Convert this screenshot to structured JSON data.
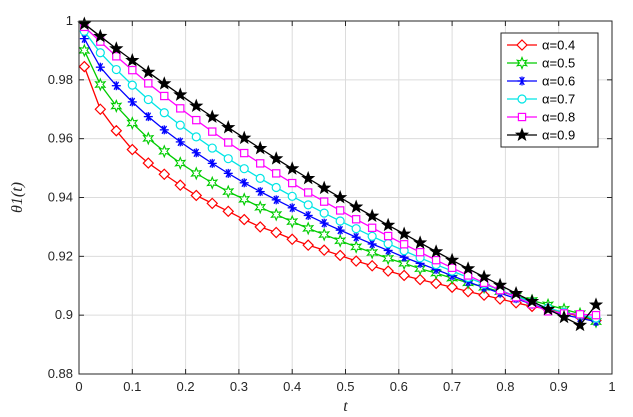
{
  "chart_data": {
    "type": "line",
    "xlabel": "t",
    "ylabel": "θ1(t)",
    "xlim": [
      0,
      1
    ],
    "ylim": [
      0.88,
      1.0
    ],
    "xticks": [
      "0",
      "0.1",
      "0.2",
      "0.3",
      "0.4",
      "0.5",
      "0.6",
      "0.7",
      "0.8",
      "0.9",
      "1"
    ],
    "yticks": [
      "0.88",
      "0.9",
      "0.92",
      "0.94",
      "0.96",
      "0.98",
      "1"
    ],
    "grid": true,
    "legend_position": "top-right",
    "x": [
      0.01,
      0.04,
      0.07,
      0.1,
      0.13,
      0.16,
      0.19,
      0.22,
      0.25,
      0.28,
      0.31,
      0.34,
      0.37,
      0.4,
      0.43,
      0.46,
      0.49,
      0.52,
      0.55,
      0.58,
      0.61,
      0.64,
      0.67,
      0.7,
      0.73,
      0.76,
      0.79,
      0.82,
      0.85,
      0.88,
      0.91,
      0.94,
      0.97
    ],
    "series": [
      {
        "name": "α=0.4",
        "color": "#ff0000",
        "marker": "diamond",
        "values": [
          0.9845,
          0.97,
          0.9627,
          0.9563,
          0.9517,
          0.9479,
          0.9442,
          0.9407,
          0.938,
          0.9353,
          0.9325,
          0.93,
          0.9281,
          0.9258,
          0.9238,
          0.9221,
          0.9203,
          0.9184,
          0.9168,
          0.915,
          0.9135,
          0.9121,
          0.9108,
          0.9095,
          0.908,
          0.9068,
          0.9055,
          0.9042,
          0.903,
          0.902,
          0.901,
          0.8995,
          0.8982
        ]
      },
      {
        "name": "α=0.5",
        "color": "#00cc00",
        "marker": "hexagram",
        "values": [
          0.99,
          0.9784,
          0.9711,
          0.9653,
          0.9601,
          0.9557,
          0.9517,
          0.9482,
          0.945,
          0.942,
          0.9394,
          0.9367,
          0.9342,
          0.9318,
          0.9295,
          0.9274,
          0.9253,
          0.9232,
          0.9213,
          0.9193,
          0.9176,
          0.9158,
          0.9143,
          0.9126,
          0.911,
          0.9095,
          0.908,
          0.9065,
          0.905,
          0.9035,
          0.902,
          0.9005,
          0.8978
        ]
      },
      {
        "name": "α=0.6",
        "color": "#0000ff",
        "marker": "asterisk",
        "values": [
          0.994,
          0.9843,
          0.978,
          0.9725,
          0.9675,
          0.963,
          0.9589,
          0.9552,
          0.9516,
          0.9482,
          0.945,
          0.942,
          0.9392,
          0.9365,
          0.9339,
          0.9313,
          0.9289,
          0.9265,
          0.9242,
          0.922,
          0.9197,
          0.9176,
          0.9155,
          0.9134,
          0.9113,
          0.9094,
          0.9075,
          0.9056,
          0.9037,
          0.9018,
          0.9001,
          0.899,
          0.8978
        ]
      },
      {
        "name": "α=0.7",
        "color": "#00e5e5",
        "marker": "circle",
        "values": [
          0.9965,
          0.9892,
          0.9835,
          0.9782,
          0.9733,
          0.9688,
          0.9646,
          0.9606,
          0.9568,
          0.9532,
          0.9498,
          0.9465,
          0.9434,
          0.9404,
          0.9375,
          0.9347,
          0.932,
          0.9294,
          0.9268,
          0.9243,
          0.9219,
          0.9195,
          0.9172,
          0.915,
          0.9128,
          0.9106,
          0.9085,
          0.9064,
          0.9044,
          0.9024,
          0.901,
          0.9,
          0.899
        ]
      },
      {
        "name": "α=0.8",
        "color": "#ff00ff",
        "marker": "square",
        "values": [
          0.998,
          0.993,
          0.988,
          0.9833,
          0.9788,
          0.9745,
          0.9703,
          0.9663,
          0.9624,
          0.9587,
          0.9551,
          0.9516,
          0.9482,
          0.9449,
          0.9417,
          0.9386,
          0.9356,
          0.9326,
          0.9297,
          0.9269,
          0.9241,
          0.9214,
          0.9187,
          0.9161,
          0.9135,
          0.911,
          0.9085,
          0.9061,
          0.9037,
          0.9013,
          0.9006,
          0.9003,
          0.9
        ]
      },
      {
        "name": "α=0.9",
        "color": "#000000",
        "marker": "pentagram",
        "values": [
          0.999,
          0.9948,
          0.9906,
          0.9866,
          0.9826,
          0.9787,
          0.9749,
          0.9711,
          0.9674,
          0.9638,
          0.9602,
          0.9567,
          0.9532,
          0.9498,
          0.9465,
          0.9432,
          0.94,
          0.9368,
          0.9337,
          0.9306,
          0.9276,
          0.9246,
          0.9216,
          0.9187,
          0.9158,
          0.913,
          0.9102,
          0.9074,
          0.9047,
          0.902,
          0.8993,
          0.8966,
          0.9035
        ]
      }
    ]
  }
}
